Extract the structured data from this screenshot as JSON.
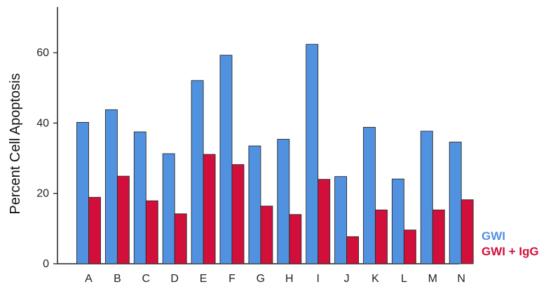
{
  "chart_data": {
    "type": "bar",
    "title": "",
    "xlabel": "",
    "ylabel": "Percent Cell Apoptosis",
    "ylim": [
      0,
      73
    ],
    "yticks": [
      0,
      20,
      40,
      60
    ],
    "grid": false,
    "legend_position": "bottom-right",
    "categories": [
      "A",
      "B",
      "C",
      "D",
      "E",
      "F",
      "G",
      "H",
      "I",
      "J",
      "K",
      "L",
      "M",
      "N"
    ],
    "series": [
      {
        "name": "GWI",
        "color": "#5192E0",
        "values": [
          40.2,
          43.8,
          37.5,
          31.3,
          52.1,
          59.3,
          33.5,
          35.4,
          62.4,
          24.8,
          38.8,
          24.1,
          37.7,
          34.6
        ]
      },
      {
        "name": "GWI + IgG",
        "color": "#D10F3A",
        "values": [
          18.9,
          24.9,
          17.9,
          14.2,
          31.1,
          28.2,
          16.4,
          14.0,
          24.0,
          7.7,
          15.3,
          9.6,
          15.3,
          18.2
        ]
      }
    ]
  }
}
